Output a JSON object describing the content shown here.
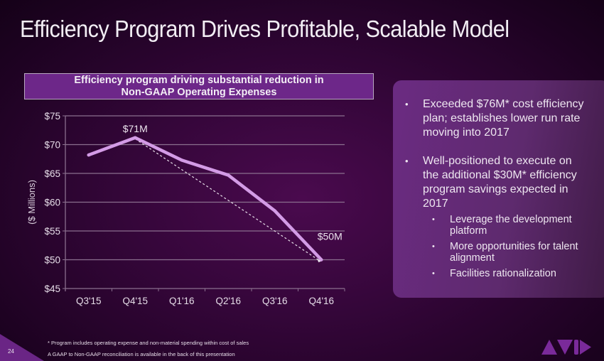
{
  "slide": {
    "title": "Efficiency Program Drives Profitable, Scalable Model",
    "page_number": "24",
    "logo": "avid-logo",
    "footnotes": [
      "* Program includes operating expense and non-material spending within cost of sales",
      "A GAAP to Non-GAAP reconciliation is available in the back of this presentation"
    ]
  },
  "chart_box": {
    "title_lines": [
      "Efficiency program driving substantial reduction in",
      "Non-GAAP Operating Expenses"
    ]
  },
  "bullets": [
    {
      "text": "Exceeded $76M* cost efficiency plan; establishes lower run rate moving into 2017",
      "lines": [
        "Exceeded $76M* cost efficiency",
        "plan; establishes lower run rate",
        "moving into 2017"
      ]
    },
    {
      "text": "Well-positioned to execute on the additional $30M* efficiency program savings expected in 2017",
      "lines": [
        "Well-positioned to execute on",
        "the additional $30M* efficiency",
        "program savings expected in",
        "2017"
      ]
    }
  ],
  "sub_bullets": [
    {
      "lines": [
        "Leverage the development",
        "platform"
      ]
    },
    {
      "lines": [
        "More opportunities for talent",
        "alignment"
      ]
    },
    {
      "lines": [
        "Facilities rationalization"
      ]
    }
  ],
  "colors": {
    "line": "#d39be6",
    "trend": "#e8e0ea",
    "grid": "#8a6f8e",
    "accent": "#6d2789"
  },
  "chart_data": {
    "type": "line",
    "title": "Efficiency program driving substantial reduction in Non-GAAP Operating Expenses",
    "xlabel": "",
    "ylabel": "($ Millions)",
    "categories": [
      "Q3'15",
      "Q4'15",
      "Q1'16",
      "Q2'16",
      "Q3'16",
      "Q4'16"
    ],
    "series": [
      {
        "name": "Non-GAAP Operating Expenses",
        "values": [
          68.2,
          71.2,
          67.3,
          64.7,
          58.5,
          50.0
        ]
      }
    ],
    "trend_line": {
      "style": "dashed",
      "from": {
        "category": "Q4'15",
        "value": 71.0
      },
      "to": {
        "category": "Q4'16",
        "value": 49.8
      }
    },
    "annotations": [
      {
        "category": "Q4'15",
        "text": "$71M"
      },
      {
        "category": "Q4'16",
        "text": "$50M"
      }
    ],
    "ylim": [
      45,
      75
    ],
    "yticks": [
      45,
      50,
      55,
      60,
      65,
      70,
      75
    ],
    "ytick_labels": [
      "$45",
      "$50",
      "$55",
      "$60",
      "$65",
      "$70",
      "$75"
    ],
    "grid": true,
    "legend": "none"
  }
}
